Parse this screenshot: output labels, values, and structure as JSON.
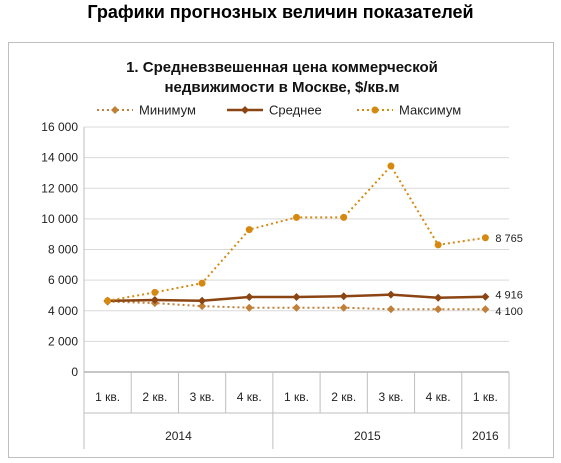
{
  "page": {
    "title": "Графики прогнозных величин показателей"
  },
  "chart_data": {
    "type": "line",
    "title_lines": [
      "1. Средневзвешенная цена коммерческой",
      "недвижимости в Москве, $/кв.м"
    ],
    "categories": [
      "1 кв.",
      "2 кв.",
      "3 кв.",
      "4 кв.",
      "1 кв.",
      "2 кв.",
      "3 кв.",
      "4 кв.",
      "1 кв."
    ],
    "groups": [
      {
        "label": "2014",
        "span": 4
      },
      {
        "label": "2015",
        "span": 4
      },
      {
        "label": "2016",
        "span": 1
      }
    ],
    "ylim": [
      0,
      16000
    ],
    "yticks": [
      0,
      2000,
      4000,
      6000,
      8000,
      10000,
      12000,
      14000,
      16000
    ],
    "ytick_labels": [
      "0",
      "2 000",
      "4 000",
      "6 000",
      "8 000",
      "10 000",
      "12 000",
      "14 000",
      "16 000"
    ],
    "grid": true,
    "legend_position": "top",
    "series": [
      {
        "name": "Минимум",
        "color": "#c0803a",
        "style": "dotted",
        "marker": "diamond",
        "values": [
          4600,
          4500,
          4300,
          4200,
          4200,
          4200,
          4100,
          4100,
          4100
        ],
        "end_label": "4 100"
      },
      {
        "name": "Среднее",
        "color": "#8b4513",
        "style": "solid",
        "marker": "diamond",
        "values": [
          4650,
          4700,
          4650,
          4900,
          4900,
          4950,
          5050,
          4850,
          4916
        ],
        "end_label": "4 916"
      },
      {
        "name": "Максимум",
        "color": "#d68910",
        "style": "dotted",
        "marker": "circle",
        "values": [
          4650,
          5200,
          5800,
          9300,
          10100,
          10100,
          13450,
          8300,
          8765
        ],
        "end_label": "8 765"
      }
    ]
  }
}
